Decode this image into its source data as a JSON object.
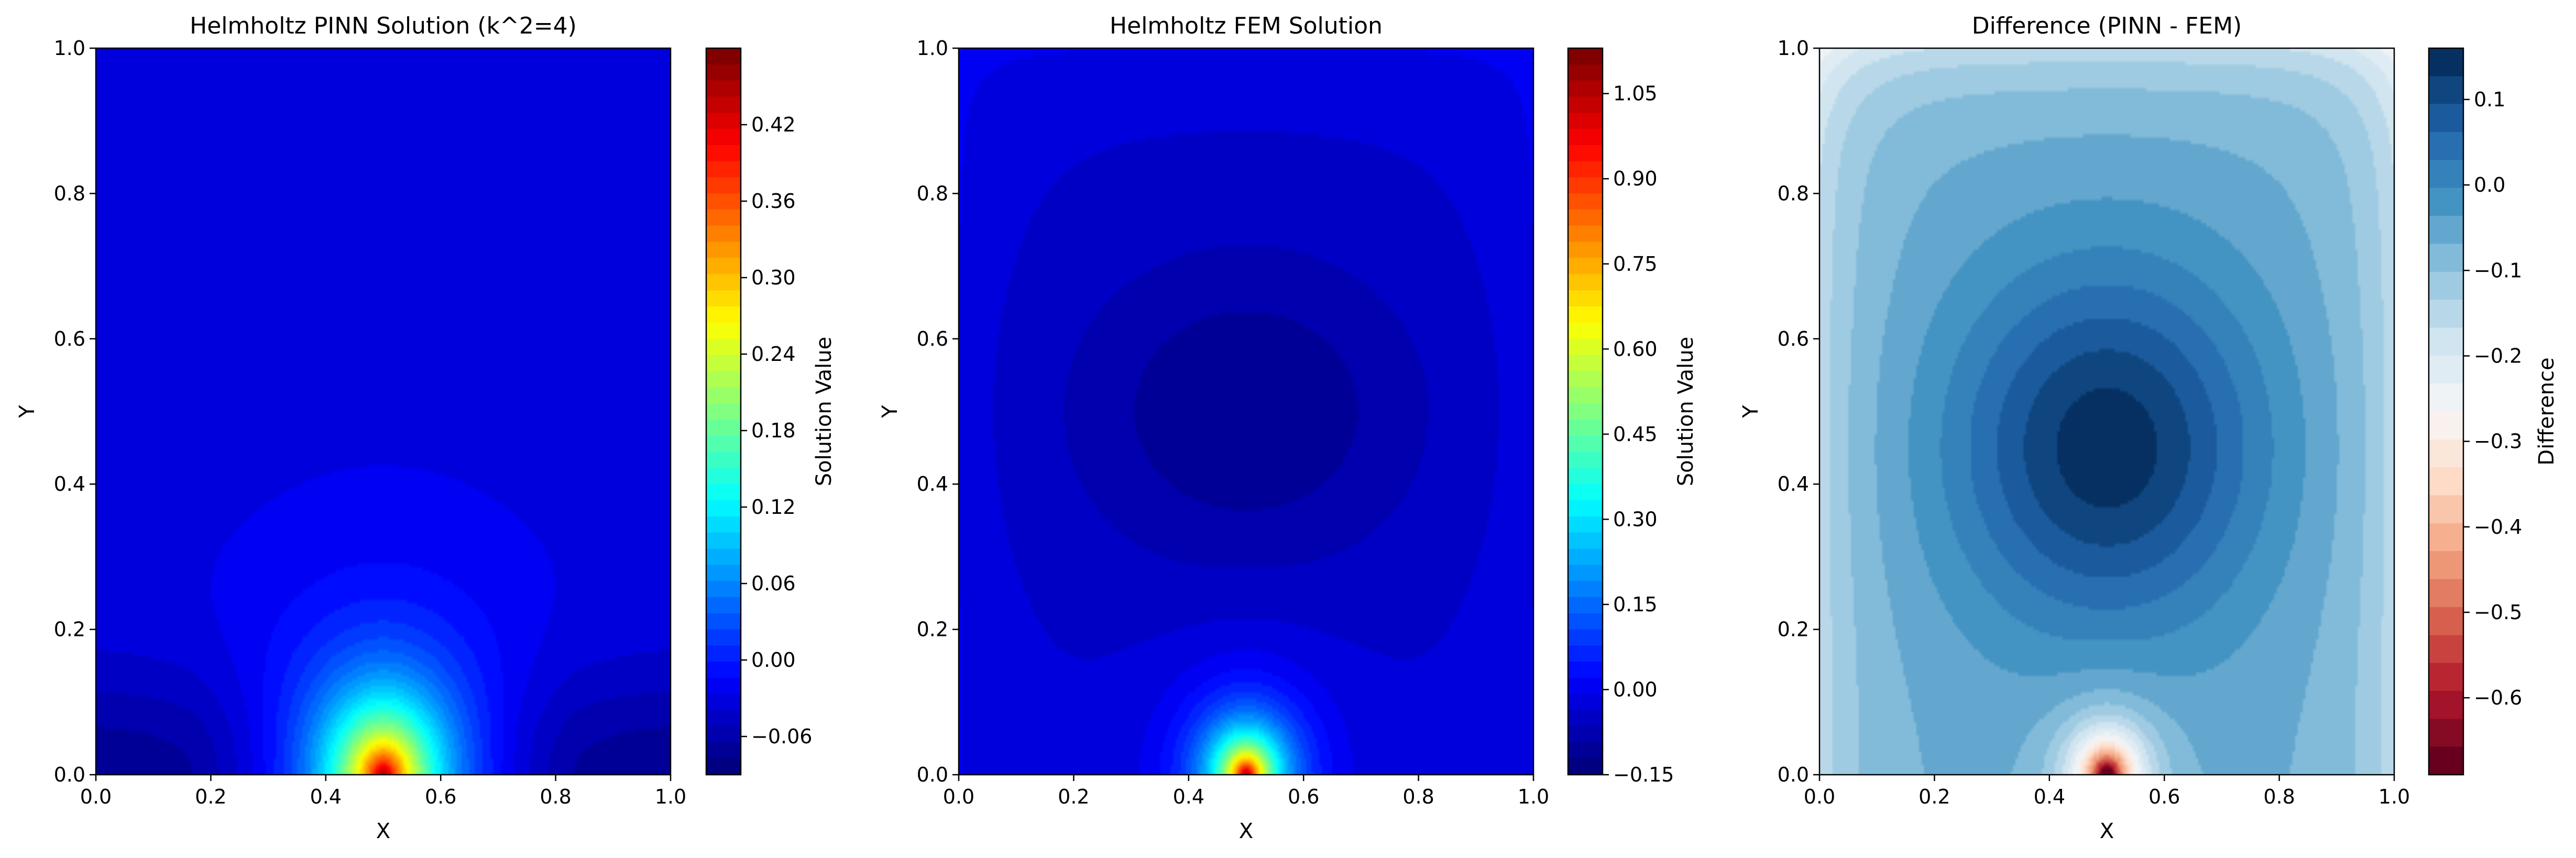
{
  "chart_data": [
    {
      "type": "heatmap",
      "title": "Helmholtz PINN Solution (k^2=4)",
      "xlabel": "X",
      "ylabel": "Y",
      "xlim": [
        0.0,
        1.0
      ],
      "ylim": [
        0.0,
        1.0
      ],
      "x_ticks": [
        "0.0",
        "0.2",
        "0.4",
        "0.6",
        "0.8",
        "1.0"
      ],
      "y_ticks": [
        "0.0",
        "0.2",
        "0.4",
        "0.6",
        "0.8",
        "1.0"
      ],
      "colormap": "jet",
      "colorbar": {
        "label": "Solution Value",
        "range": [
          -0.09,
          0.48
        ],
        "ticks": [
          -0.06,
          0.0,
          0.06,
          0.12,
          0.18,
          0.24,
          0.3,
          0.36,
          0.42
        ],
        "tick_labels": [
          "−0.06",
          "0.00",
          "0.06",
          "0.12",
          "0.18",
          "0.24",
          "0.30",
          "0.36",
          "0.42"
        ]
      },
      "field_summary": {
        "background_value": -0.03,
        "peak": {
          "x": 0.5,
          "y": 0.0,
          "value": 0.46
        }
      }
    },
    {
      "type": "heatmap",
      "title": "Helmholtz FEM Solution",
      "xlabel": "X",
      "ylabel": "Y",
      "xlim": [
        0.0,
        1.0
      ],
      "ylim": [
        0.0,
        1.0
      ],
      "x_ticks": [
        "0.0",
        "0.2",
        "0.4",
        "0.6",
        "0.8",
        "1.0"
      ],
      "y_ticks": [
        "0.0",
        "0.2",
        "0.4",
        "0.6",
        "0.8",
        "1.0"
      ],
      "colormap": "jet",
      "colorbar": {
        "label": "Solution Value",
        "range": [
          -0.15,
          1.13
        ],
        "ticks": [
          -0.15,
          0.0,
          0.15,
          0.3,
          0.45,
          0.6,
          0.75,
          0.9,
          1.05
        ],
        "tick_labels": [
          "−0.15",
          "0.00",
          "0.15",
          "0.30",
          "0.45",
          "0.60",
          "0.75",
          "0.90",
          "1.05"
        ]
      },
      "field_summary": {
        "background_value": -0.04,
        "minimum": {
          "x": 0.5,
          "y": 0.5,
          "value": -0.12
        },
        "peak": {
          "x": 0.5,
          "y": 0.0,
          "value": 1.1
        }
      }
    },
    {
      "type": "heatmap",
      "title": "Difference (PINN - FEM)",
      "xlabel": "X",
      "ylabel": "Y",
      "xlim": [
        0.0,
        1.0
      ],
      "ylim": [
        0.0,
        1.0
      ],
      "x_ticks": [
        "0.0",
        "0.2",
        "0.4",
        "0.6",
        "0.8",
        "1.0"
      ],
      "y_ticks": [
        "0.0",
        "0.2",
        "0.4",
        "0.6",
        "0.8",
        "1.0"
      ],
      "colormap": "RdBu",
      "colorbar": {
        "label": "Difference",
        "range": [
          -0.69,
          0.16
        ],
        "ticks": [
          -0.6,
          -0.5,
          -0.4,
          -0.3,
          -0.2,
          -0.1,
          0.0,
          0.1
        ],
        "tick_labels": [
          "−0.6",
          "−0.5",
          "−0.4",
          "−0.3",
          "−0.2",
          "−0.1",
          "0.0",
          "0.1"
        ]
      },
      "field_summary": {
        "maximum": {
          "x": 0.5,
          "y": 0.45,
          "value": 0.16
        },
        "minimum": {
          "x": 0.5,
          "y": 0.0,
          "value": -0.68
        }
      }
    }
  ]
}
